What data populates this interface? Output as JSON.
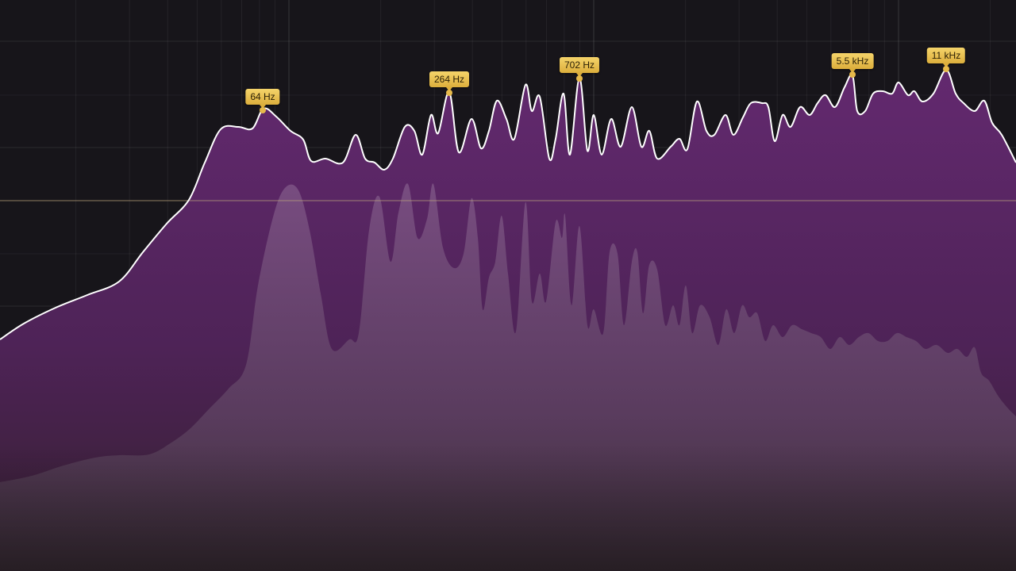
{
  "analyzer": {
    "colors": {
      "background": "#17151a",
      "grid": "#ffffff",
      "threshold_line": "#b9a27c",
      "peak_hold_fill": "#5c2868",
      "peak_hold_line": "#ffffff",
      "realtime_fill": "#8a5c92",
      "peak_label_bg": "#e9c252",
      "peak_label_text": "#2a1f05",
      "peak_dot": "#e6b94a"
    },
    "peak_labels": [
      {
        "label": "64 Hz"
      },
      {
        "label": "264 Hz"
      },
      {
        "label": "702 Hz"
      },
      {
        "label": "5.5 kHz"
      },
      {
        "label": "11 kHz"
      }
    ]
  }
}
